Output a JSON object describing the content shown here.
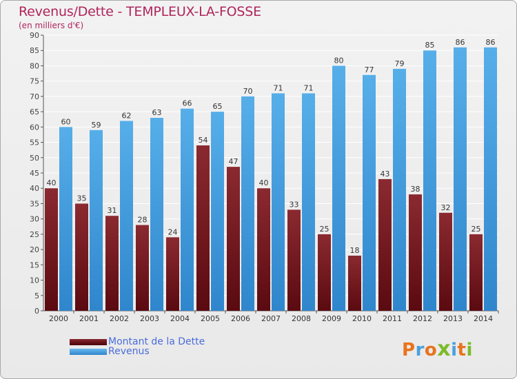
{
  "header": {
    "title": "Revenus/Dette - TEMPLEUX-LA-FOSSE",
    "subtitle": "(en milliers d'€)"
  },
  "logo": {
    "text": "Proxiti",
    "letters": [
      "P",
      "r",
      "o",
      "x",
      "i",
      "t",
      "i"
    ],
    "colors": [
      "#e8731c",
      "#4aa0de",
      "#e8731c",
      "#7cba2a",
      "#4aa0de",
      "#e8731c",
      "#7cba2a"
    ]
  },
  "colors": {
    "title": "#b0245c",
    "dette": "#7a2228",
    "revenus": "#4aa3e4",
    "value_label": "#333333",
    "grid": "#ffffff",
    "legend_text": "#4a6cdc"
  },
  "chart_data": {
    "type": "bar",
    "title": "Revenus/Dette - TEMPLEUX-LA-FOSSE",
    "ylabel": "(en milliers d'€)",
    "ylim": [
      0,
      90
    ],
    "ytick_step": 5,
    "grid": true,
    "legend_position": "bottom-left",
    "categories": [
      "2000",
      "2001",
      "2002",
      "2003",
      "2004",
      "2005",
      "2006",
      "2007",
      "2008",
      "2009",
      "2010",
      "2011",
      "2012",
      "2013",
      "2014"
    ],
    "series": [
      {
        "name": "Montant de la Dette",
        "color": "#7a2228",
        "values": [
          40,
          35,
          31,
          28,
          24,
          54,
          47,
          40,
          33,
          25,
          18,
          43,
          38,
          32,
          25
        ]
      },
      {
        "name": "Revenus",
        "color": "#4aa3e4",
        "values": [
          60,
          59,
          62,
          63,
          66,
          65,
          70,
          71,
          71,
          80,
          77,
          79,
          85,
          86,
          86
        ]
      }
    ]
  }
}
